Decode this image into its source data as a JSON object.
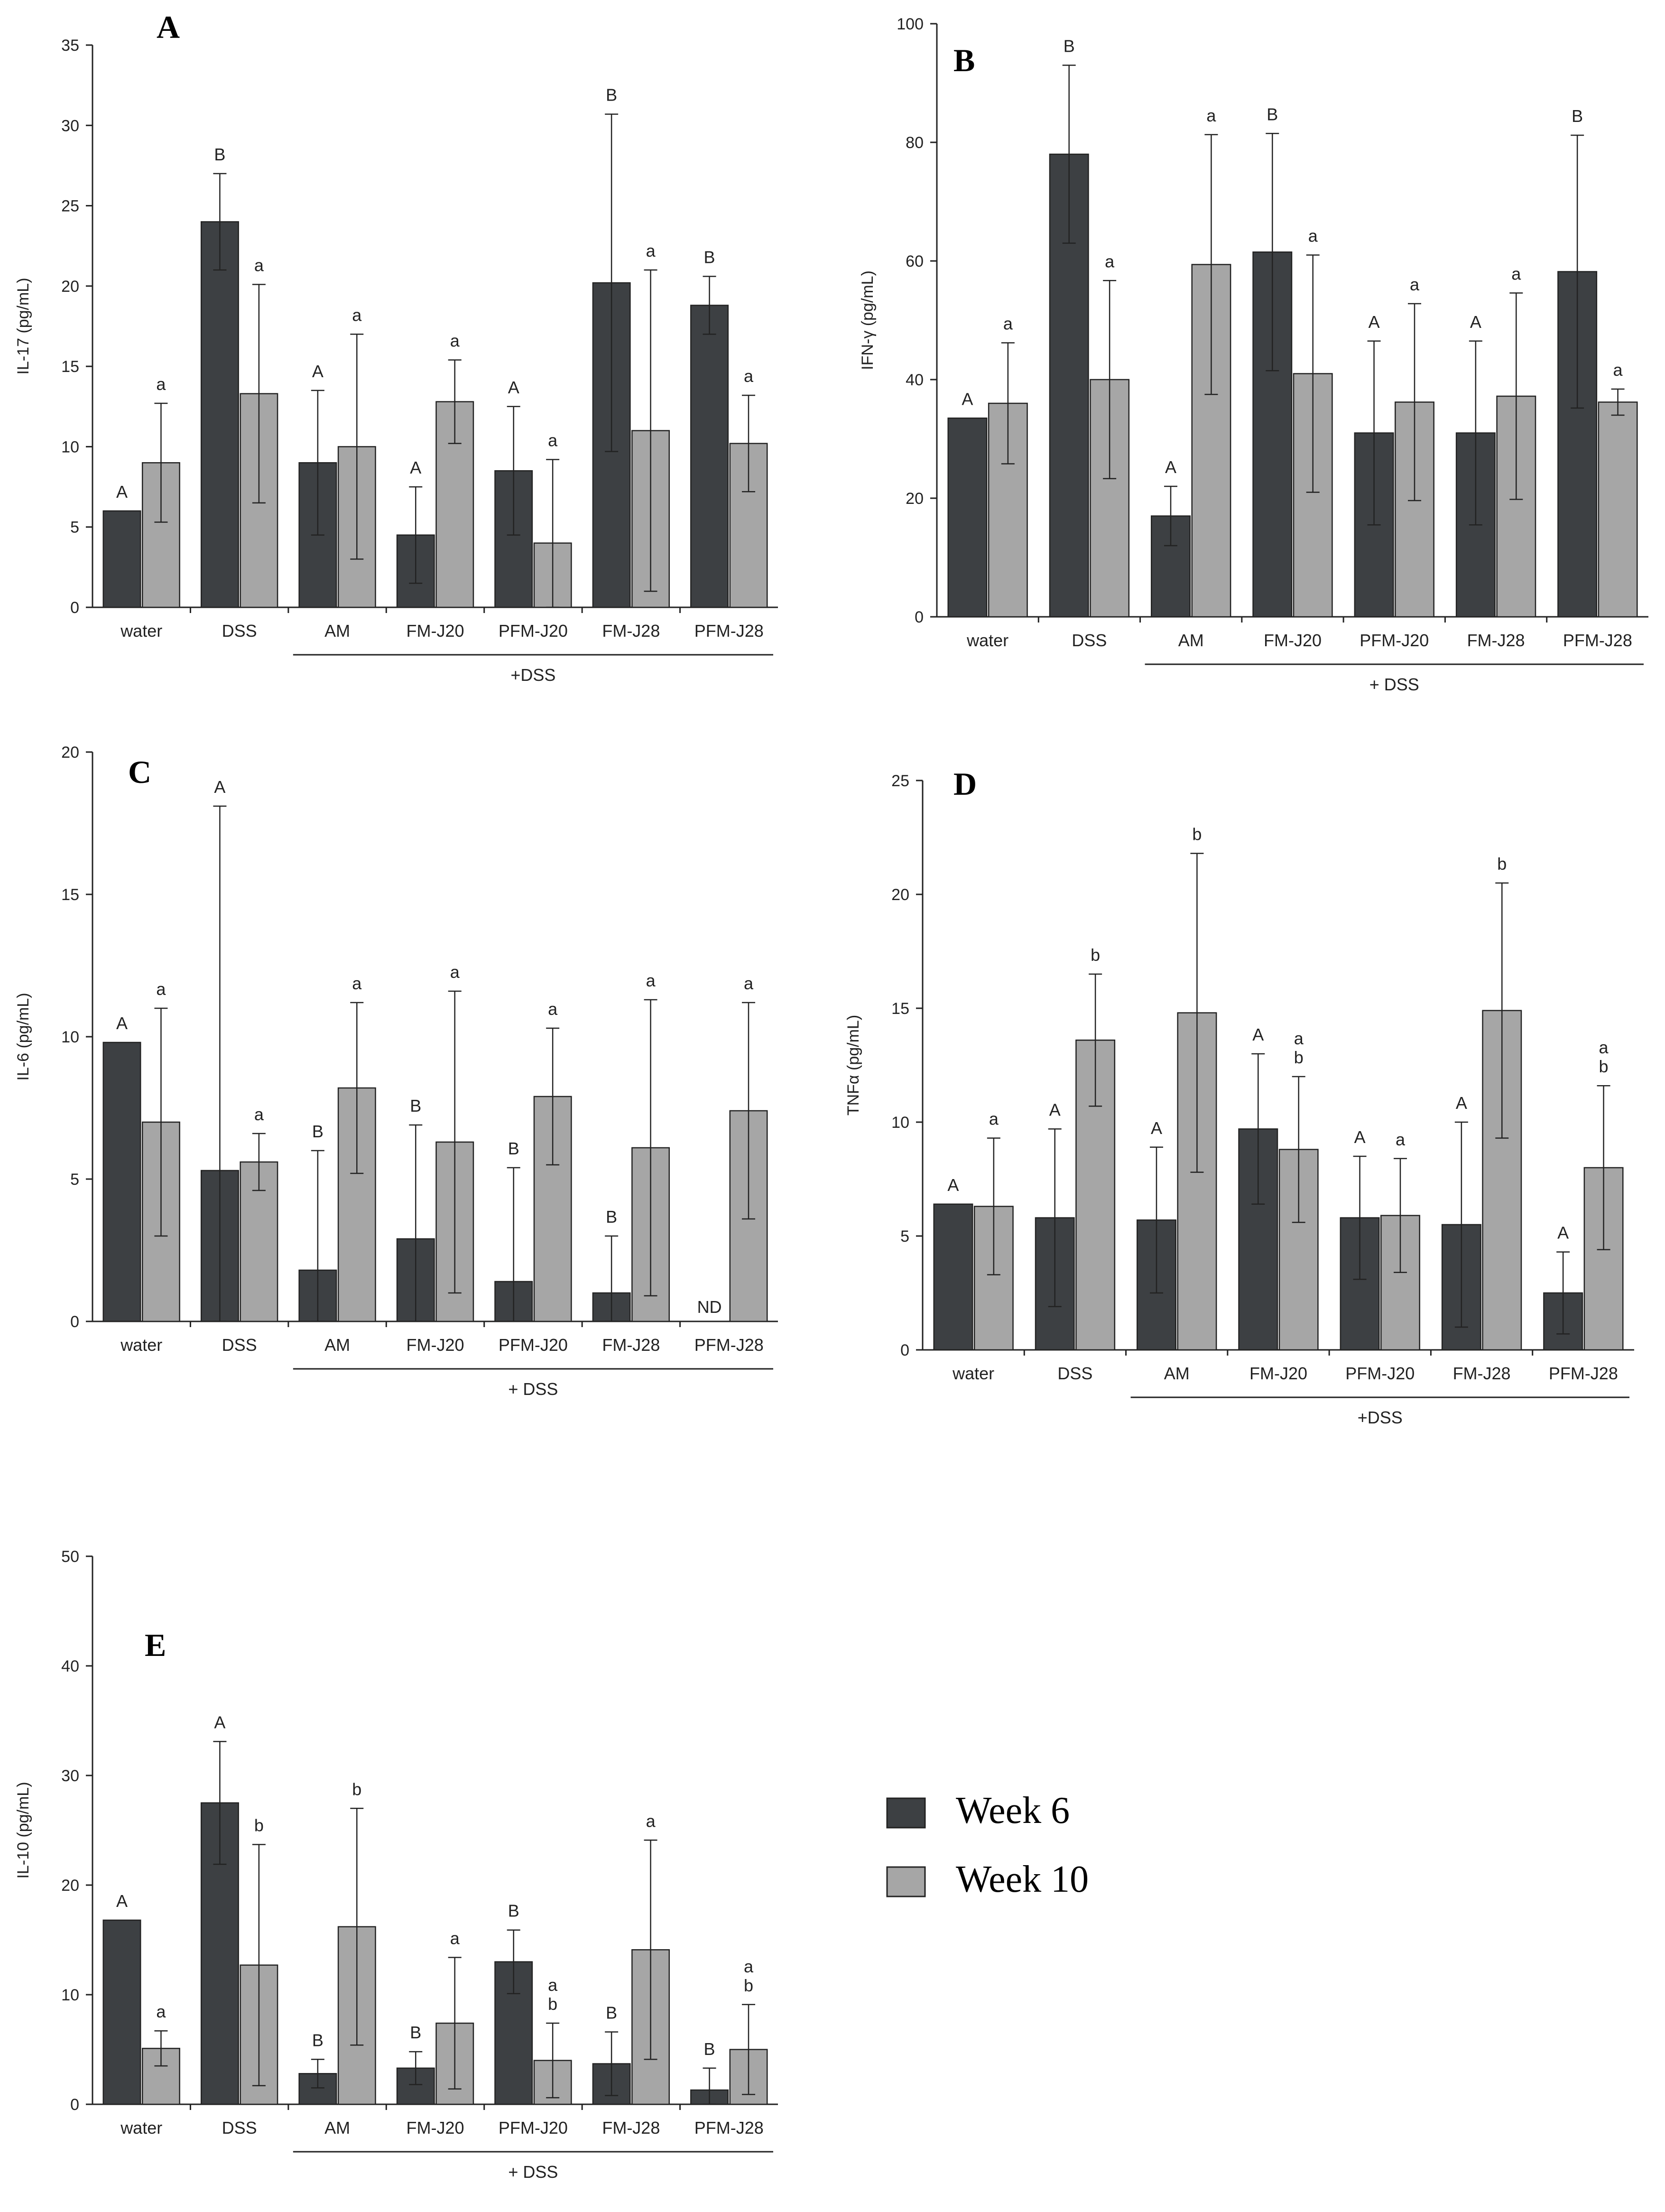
{
  "legend": [
    {
      "label": "Week 6",
      "color": "#3d4043"
    },
    {
      "label": "Week 10",
      "color": "#a6a6a6"
    }
  ],
  "colors": {
    "week6": "#3d4043",
    "week10": "#a6a6a6",
    "axis": "#222222"
  },
  "chart_data": [
    {
      "panel": "A",
      "type": "bar",
      "ylabel": "IL-17 (pg/mL)",
      "ylim": [
        0,
        35
      ],
      "yticks": [
        0,
        5,
        10,
        15,
        20,
        25,
        30,
        35
      ],
      "categories": [
        "water",
        "DSS",
        "AM",
        "FM-J20",
        "PFM-J20",
        "FM-J28",
        "PFM-J28"
      ],
      "group_label": "+DSS",
      "group_start": 2,
      "series": [
        {
          "name": "Week 6",
          "values": [
            6,
            24,
            9,
            4.5,
            8.5,
            20.2,
            18.8
          ],
          "err": [
            0,
            3,
            4.5,
            3,
            4,
            10.5,
            1.8
          ],
          "sig": [
            "A",
            "B",
            "A",
            "A",
            "A",
            "B",
            "B"
          ]
        },
        {
          "name": "Week 10",
          "values": [
            9,
            13.3,
            10,
            12.8,
            4,
            11,
            10.2
          ],
          "err": [
            3.7,
            6.8,
            7,
            2.6,
            5.2,
            10,
            3
          ],
          "sig": [
            "a",
            "a",
            "a",
            "a",
            "a",
            "a",
            "a"
          ]
        }
      ],
      "annotations": []
    },
    {
      "panel": "B",
      "type": "bar",
      "ylabel": "IFN-γ (pg/mL)",
      "ylim": [
        0,
        100
      ],
      "yticks": [
        0,
        20,
        40,
        60,
        80,
        100
      ],
      "categories": [
        "water",
        "DSS",
        "AM",
        "FM-J20",
        "PFM-J20",
        "FM-J28",
        "PFM-J28"
      ],
      "group_label": "+ DSS",
      "group_start": 2,
      "series": [
        {
          "name": "Week 6",
          "values": [
            33.5,
            78,
            17,
            61.5,
            31,
            31,
            58.2
          ],
          "err": [
            0,
            15,
            5,
            20,
            15.5,
            15.5,
            23
          ],
          "sig": [
            "A",
            "B",
            "A",
            "B",
            "A",
            "A",
            "B"
          ]
        },
        {
          "name": "Week 10",
          "values": [
            36,
            40,
            59.4,
            41,
            36.2,
            37.2,
            36.2
          ],
          "err": [
            10.2,
            16.7,
            21.9,
            20,
            16.6,
            17.4,
            2.2
          ],
          "sig": [
            "a",
            "a",
            "a",
            "a",
            "a",
            "a",
            "a"
          ]
        }
      ],
      "annotations": []
    },
    {
      "panel": "C",
      "type": "bar",
      "ylabel": "IL-6 (pg/mL)",
      "ylim": [
        0,
        20
      ],
      "yticks": [
        0,
        5,
        10,
        15,
        20
      ],
      "categories": [
        "water",
        "DSS",
        "AM",
        "FM-J20",
        "PFM-J20",
        "FM-J28",
        "PFM-J28"
      ],
      "group_label": "+ DSS",
      "group_start": 2,
      "series": [
        {
          "name": "Week 6",
          "values": [
            9.8,
            5.3,
            1.8,
            2.9,
            1.4,
            1,
            0
          ],
          "err": [
            0,
            12.8,
            4.2,
            4,
            4,
            2,
            0
          ],
          "sig": [
            "A",
            "A",
            "B",
            "B",
            "B",
            "B",
            ""
          ]
        },
        {
          "name": "Week 10",
          "values": [
            7,
            5.6,
            8.2,
            6.3,
            7.9,
            6.1,
            7.4
          ],
          "err": [
            4,
            1,
            3,
            5.3,
            2.4,
            5.2,
            3.8
          ],
          "sig": [
            "a",
            "a",
            "a",
            "a",
            "a",
            "a",
            "a"
          ]
        }
      ],
      "annotations": [
        {
          "category_index": 6,
          "series": 0,
          "text": "ND"
        }
      ]
    },
    {
      "panel": "D",
      "type": "bar",
      "ylabel": "TNFα (pg/mL)",
      "ylim": [
        0,
        25
      ],
      "yticks": [
        0,
        5,
        10,
        15,
        20,
        25
      ],
      "categories": [
        "water",
        "DSS",
        "AM",
        "FM-J20",
        "PFM-J20",
        "FM-J28",
        "PFM-J28"
      ],
      "group_label": "+DSS",
      "group_start": 2,
      "series": [
        {
          "name": "Week 6",
          "values": [
            6.4,
            5.8,
            5.7,
            9.7,
            5.8,
            5.5,
            2.5
          ],
          "err": [
            0,
            3.9,
            3.2,
            3.3,
            2.7,
            4.5,
            1.8
          ],
          "sig": [
            "A",
            "A",
            "A",
            "A",
            "A",
            "A",
            "A"
          ]
        },
        {
          "name": "Week 10",
          "values": [
            6.3,
            13.6,
            14.8,
            8.8,
            5.9,
            14.9,
            8
          ],
          "err": [
            3,
            2.9,
            7,
            3.2,
            2.5,
            5.6,
            3.6
          ],
          "sig": [
            "a",
            "b",
            "b",
            "a\nb",
            "a",
            "b",
            "a\nb"
          ]
        }
      ],
      "annotations": []
    },
    {
      "panel": "E",
      "type": "bar",
      "ylabel": "IL-10 (pg/mL)",
      "ylim": [
        0,
        50
      ],
      "yticks": [
        0,
        10,
        20,
        30,
        40,
        50
      ],
      "categories": [
        "water",
        "DSS",
        "AM",
        "FM-J20",
        "PFM-J20",
        "FM-J28",
        "PFM-J28"
      ],
      "group_label": "+ DSS",
      "group_start": 2,
      "series": [
        {
          "name": "Week 6",
          "values": [
            16.8,
            27.5,
            2.8,
            3.3,
            13,
            3.7,
            1.3
          ],
          "err": [
            0,
            5.6,
            1.3,
            1.5,
            2.9,
            2.9,
            2
          ],
          "sig": [
            "A",
            "A",
            "B",
            "B",
            "B",
            "B",
            "B"
          ]
        },
        {
          "name": "Week 10",
          "values": [
            5.1,
            12.7,
            16.2,
            7.4,
            4,
            14.1,
            5
          ],
          "err": [
            1.6,
            11,
            10.8,
            6,
            3.4,
            10,
            4.1
          ],
          "sig": [
            "a",
            "b",
            "b",
            "a",
            "a\nb",
            "a",
            "a\nb"
          ]
        }
      ],
      "annotations": []
    }
  ]
}
